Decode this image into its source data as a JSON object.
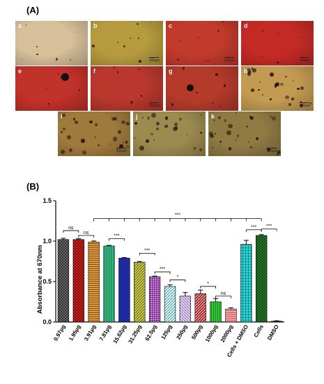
{
  "panel_a": {
    "label": "(A)",
    "images": [
      {
        "letter": "a",
        "scale": "",
        "tone": "#d6bf99"
      },
      {
        "letter": "b",
        "scale": "100µm",
        "tone": "#b59a3e"
      },
      {
        "letter": "c",
        "scale": "100µm",
        "tone": "#c23a2c"
      },
      {
        "letter": "d",
        "scale": "100µm",
        "tone": "#c42a25"
      },
      {
        "letter": "e",
        "scale": "",
        "tone": "#c1322a"
      },
      {
        "letter": "f",
        "scale": "100µm",
        "tone": "#b9372c"
      },
      {
        "letter": "g",
        "scale": "",
        "tone": "#b43a2a"
      },
      {
        "letter": "h",
        "scale": "100µm",
        "tone": "#c39a52"
      },
      {
        "letter": "i",
        "scale": "100µm",
        "tone": "#9e7a3c"
      },
      {
        "letter": "j",
        "scale": "",
        "tone": "#9c8a4f"
      },
      {
        "letter": "k",
        "scale": "100µm",
        "tone": "#8f7a44"
      }
    ]
  },
  "panel_b": {
    "label": "(B)"
  },
  "chart_data": {
    "type": "bar",
    "title": "",
    "xlabel": "",
    "ylabel": "Absorbance at 670nm",
    "ylim": [
      0,
      1.5
    ],
    "yticks": [
      "0.0",
      "0.5",
      "1.0",
      "1.5"
    ],
    "categories": [
      "0.97µg",
      "1.95µg",
      "3.91µg",
      "7.81µg",
      "15.62µg",
      "31.25µg",
      "62.5µg",
      "125µg",
      "250µg",
      "500µg",
      "1000µg",
      "2000µg",
      "Cells + DMSO",
      "Cells",
      "DMSO"
    ],
    "values": [
      1.02,
      1.02,
      0.99,
      0.94,
      0.79,
      0.74,
      0.56,
      0.44,
      0.32,
      0.35,
      0.25,
      0.16,
      0.96,
      1.07,
      0.01
    ],
    "errors": [
      0.015,
      0.01,
      0.012,
      0.008,
      0.006,
      0.008,
      0.008,
      0.02,
      0.045,
      0.045,
      0.04,
      0.015,
      0.05,
      0.01,
      0.005
    ],
    "colors": [
      "#555555",
      "#d52a2a",
      "#d4892c",
      "#3cc08a",
      "#1e2a9e",
      "#a3a32a",
      "#8a1f9e",
      "#2a9c9c",
      "#a07ac0",
      "#b22222",
      "#33c233",
      "#f08080",
      "#2bd3d3",
      "#2e7d32",
      "#333333"
    ],
    "significance": [
      {
        "from": 0,
        "to": 1,
        "label": "ns",
        "y": 1.13
      },
      {
        "from": 1,
        "to": 2,
        "label": "ns",
        "y": 1.07
      },
      {
        "from": 3,
        "to": 4,
        "label": "***",
        "y": 1.03
      },
      {
        "from": 5,
        "to": 6,
        "label": "***",
        "y": 0.85
      },
      {
        "from": 6,
        "to": 7,
        "label": "***",
        "y": 0.62
      },
      {
        "from": 7,
        "to": 8,
        "label": "*",
        "y": 0.52
      },
      {
        "from": 9,
        "to": 10,
        "label": "*",
        "y": 0.44
      },
      {
        "from": 10,
        "to": 11,
        "label": "ns",
        "y": 0.32
      },
      {
        "from": 12,
        "to": 13,
        "label": "***",
        "y": 1.14
      },
      {
        "from": 13,
        "to": 14,
        "label": "***",
        "y": 1.15
      }
    ],
    "overall_bracket": {
      "from": 2,
      "to": 13,
      "label": "***",
      "y": 1.28
    }
  }
}
